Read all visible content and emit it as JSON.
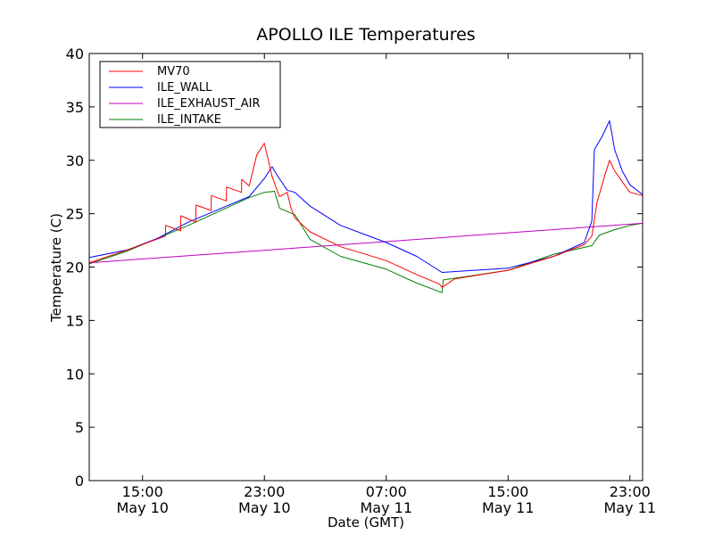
{
  "chart_data": {
    "type": "line",
    "title": "APOLLO ILE Temperatures",
    "xlabel": "Date (GMT)",
    "ylabel": "Temperature (C)",
    "ylim": [
      0,
      40
    ],
    "xlim": [
      "2011-05-10 11:30",
      "2011-05-11 23:50"
    ],
    "yticks": [
      "0",
      "5",
      "10",
      "15",
      "20",
      "25",
      "30",
      "35",
      "40"
    ],
    "xticks": [
      {
        "time": "2011-05-10 15:00",
        "line1": "15:00",
        "line2": "May 10"
      },
      {
        "time": "2011-05-10 23:00",
        "line1": "23:00",
        "line2": "May 10"
      },
      {
        "time": "2011-05-11 07:00",
        "line1": "07:00",
        "line2": "May 11"
      },
      {
        "time": "2011-05-11 15:00",
        "line1": "15:00",
        "line2": "May 11"
      },
      {
        "time": "2011-05-11 23:00",
        "line1": "23:00",
        "line2": "May 11"
      }
    ],
    "grid": false,
    "legend_position": "top-left",
    "series": [
      {
        "name": "MV70",
        "color": "#ff0000",
        "x": [
          "2011-05-10 11:30",
          "2011-05-10 14:00",
          "2011-05-10 16:30",
          "2011-05-10 16:31",
          "2011-05-10 17:30",
          "2011-05-10 17:31",
          "2011-05-10 18:30",
          "2011-05-10 18:31",
          "2011-05-10 19:30",
          "2011-05-10 19:31",
          "2011-05-10 20:30",
          "2011-05-10 20:31",
          "2011-05-10 21:30",
          "2011-05-10 21:31",
          "2011-05-10 22:00",
          "2011-05-10 22:30",
          "2011-05-10 23:00",
          "2011-05-10 23:30",
          "2011-05-10 23:45",
          "2011-05-11 00:00",
          "2011-05-11 00:30",
          "2011-05-11 00:45",
          "2011-05-11 01:00",
          "2011-05-11 02:00",
          "2011-05-11 04:00",
          "2011-05-11 07:00",
          "2011-05-11 09:00",
          "2011-05-11 10:30",
          "2011-05-11 10:40",
          "2011-05-11 11:30",
          "2011-05-11 15:00",
          "2011-05-11 18:00",
          "2011-05-11 20:00",
          "2011-05-11 20:30",
          "2011-05-11 20:50",
          "2011-05-11 21:20",
          "2011-05-11 21:40",
          "2011-05-11 22:00",
          "2011-05-11 22:30",
          "2011-05-11 23:00",
          "2011-05-11 23:50"
        ],
        "y": [
          20.4,
          21.6,
          22.9,
          23.9,
          23.4,
          24.8,
          24.2,
          25.8,
          25.3,
          26.7,
          26.2,
          27.5,
          27.0,
          28.2,
          27.6,
          30.5,
          31.6,
          28.5,
          27.5,
          26.6,
          27.0,
          25.5,
          24.6,
          23.3,
          21.9,
          20.6,
          19.3,
          18.4,
          18.1,
          18.9,
          19.7,
          21.0,
          22.1,
          22.9,
          26.0,
          28.5,
          30.0,
          29.0,
          28.0,
          27.0,
          26.7
        ]
      },
      {
        "name": "ILE_WALL",
        "color": "#0000ff",
        "x": [
          "2011-05-10 11:30",
          "2011-05-10 14:00",
          "2011-05-10 16:00",
          "2011-05-10 18:00",
          "2011-05-10 20:00",
          "2011-05-10 22:00",
          "2011-05-10 23:00",
          "2011-05-10 23:30",
          "2011-05-10 23:50",
          "2011-05-11 00:30",
          "2011-05-11 01:00",
          "2011-05-11 02:00",
          "2011-05-11 04:00",
          "2011-05-11 07:00",
          "2011-05-11 09:00",
          "2011-05-11 10:40",
          "2011-05-11 15:00",
          "2011-05-11 18:00",
          "2011-05-11 20:00",
          "2011-05-11 20:30",
          "2011-05-11 20:40",
          "2011-05-11 21:10",
          "2011-05-11 21:40",
          "2011-05-11 22:00",
          "2011-05-11 22:30",
          "2011-05-11 23:00",
          "2011-05-11 23:50"
        ],
        "y": [
          20.9,
          21.6,
          22.7,
          24.2,
          25.4,
          26.6,
          28.3,
          29.4,
          28.6,
          27.2,
          27.0,
          25.7,
          23.9,
          22.3,
          21.0,
          19.5,
          19.9,
          21.0,
          22.3,
          24.3,
          31.0,
          32.2,
          33.7,
          31.0,
          29.0,
          27.7,
          26.8
        ]
      },
      {
        "name": "ILE_EXHAUST_AIR",
        "color": "#bf00bf",
        "x": [
          "2011-05-10 11:30",
          "2011-05-11 23:50"
        ],
        "y": [
          20.4,
          24.1
        ]
      },
      {
        "name": "ILE_INTAKE",
        "color": "#008000",
        "x": [
          "2011-05-10 11:30",
          "2011-05-10 14:00",
          "2011-05-10 16:00",
          "2011-05-10 18:00",
          "2011-05-10 20:00",
          "2011-05-10 22:00",
          "2011-05-10 23:00",
          "2011-05-10 23:40",
          "2011-05-11 00:00",
          "2011-05-11 01:00",
          "2011-05-11 02:00",
          "2011-05-11 04:00",
          "2011-05-11 07:00",
          "2011-05-11 09:00",
          "2011-05-11 10:40",
          "2011-05-11 10:45",
          "2011-05-11 15:00",
          "2011-05-11 18:00",
          "2011-05-11 20:30",
          "2011-05-11 21:00",
          "2011-05-11 22:00",
          "2011-05-11 23:00",
          "2011-05-11 23:50"
        ],
        "y": [
          20.3,
          21.5,
          22.7,
          23.9,
          25.2,
          26.5,
          27.0,
          27.1,
          25.5,
          24.9,
          22.6,
          21.0,
          19.8,
          18.5,
          17.6,
          18.8,
          19.7,
          21.2,
          22.0,
          23.0,
          23.5,
          23.9,
          24.1
        ]
      }
    ]
  }
}
